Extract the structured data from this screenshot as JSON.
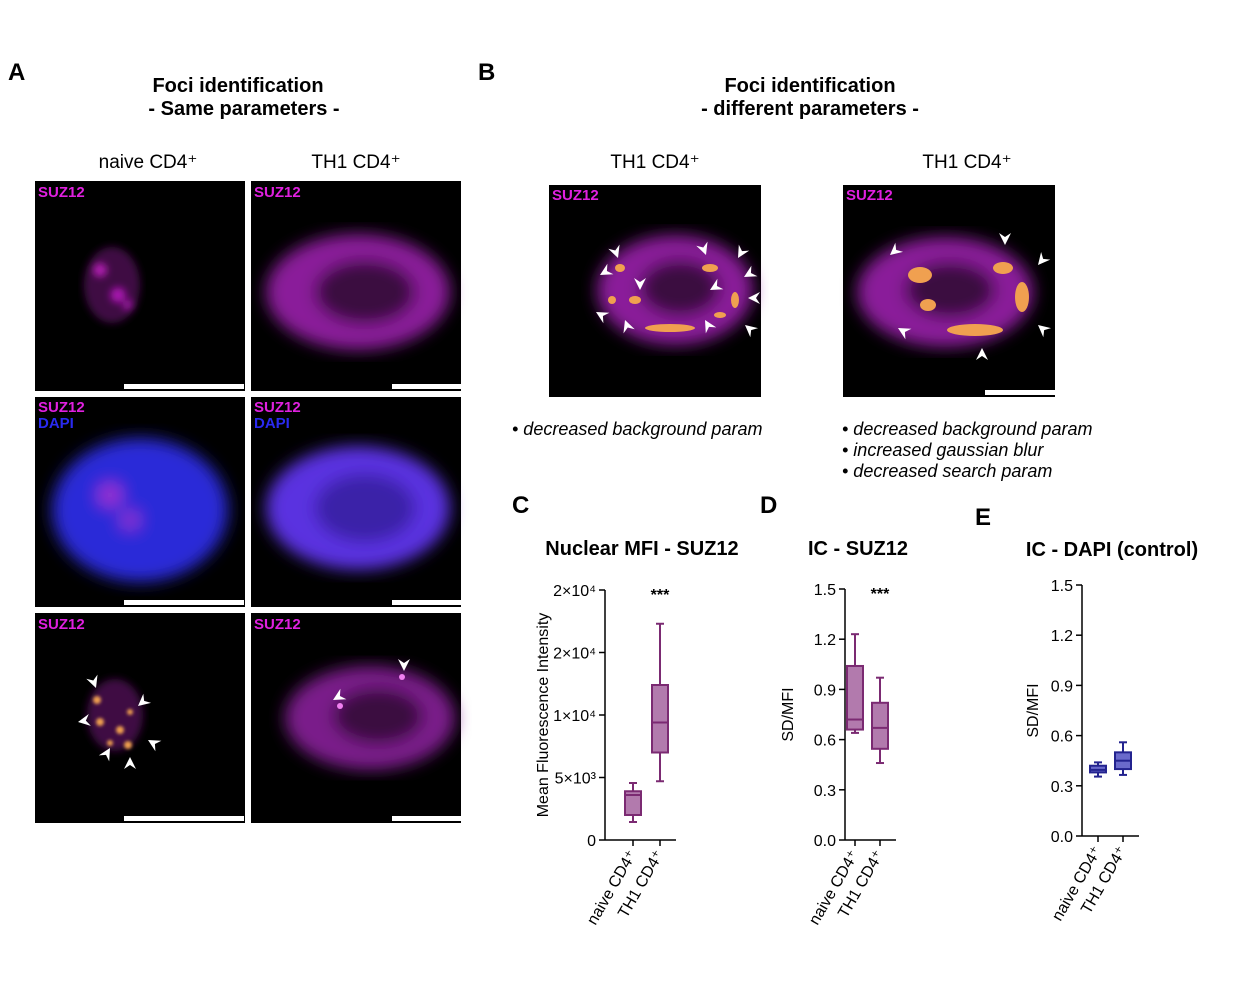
{
  "panel_a": {
    "letter": "A",
    "title_line1": "Foci identification",
    "title_line2": "- Same parameters -",
    "columns": [
      "naive CD4⁺",
      "TH1 CD4⁺"
    ],
    "channel_suz12": "SUZ12",
    "channel_dapi": "DAPI"
  },
  "panel_b": {
    "letter": "B",
    "title_line1": "Foci identification",
    "title_line2": "- different parameters -",
    "columns": [
      "TH1 CD4⁺",
      "TH1 CD4⁺"
    ],
    "channel": "SUZ12",
    "notes_left": [
      "• decreased background param"
    ],
    "notes_right": [
      "• decreased background param",
      "• increased gaussian blur",
      "• decreased search param"
    ]
  },
  "chart_data": [
    {
      "type": "box",
      "letter": "C",
      "title": "Nuclear MFI - SUZ12",
      "ylabel": "Mean Fluorescence Intensity",
      "categories": [
        "naive CD4⁺",
        "TH1 CD4⁺"
      ],
      "annotation": "***",
      "color": "#7b2a72",
      "fill": "#b27aad",
      "ylim": [
        0,
        20000
      ],
      "yticks": [
        {
          "value": 0,
          "label": "0"
        },
        {
          "value": 5000,
          "label": "5×10³"
        },
        {
          "value": 10000,
          "label": "1×10⁴"
        },
        {
          "value": 15000,
          "label": "2×10⁴"
        },
        {
          "value": 20000,
          "label": "2×10⁴"
        }
      ],
      "boxes": [
        {
          "min": 1440,
          "q1": 2000,
          "median": 3600,
          "q3": 3900,
          "max": 4560
        },
        {
          "min": 4700,
          "q1": 7000,
          "median": 9400,
          "q3": 12400,
          "max": 17300
        }
      ]
    },
    {
      "type": "box",
      "letter": "D",
      "title": "IC - SUZ12",
      "ylabel": "SD/MFI",
      "categories": [
        "naive CD4⁺",
        "TH1 CD4⁺"
      ],
      "annotation": "***",
      "color": "#7b2a72",
      "fill": "#b27aad",
      "ylim": [
        0,
        1.5
      ],
      "yticks": [
        {
          "value": 0,
          "label": "0.0"
        },
        0.3,
        0.6,
        0.9,
        1.2,
        1.5
      ],
      "boxes": [
        {
          "min": 0.64,
          "q1": 0.66,
          "median": 0.72,
          "q3": 1.04,
          "max": 1.23
        },
        {
          "min": 0.46,
          "q1": 0.545,
          "median": 0.67,
          "q3": 0.82,
          "max": 0.97
        }
      ]
    },
    {
      "type": "box",
      "letter": "E",
      "title": "IC - DAPI (control)",
      "ylabel": "SD/MFI",
      "categories": [
        "naive CD4⁺",
        "TH1 CD4⁺"
      ],
      "color": "#23238f",
      "fill": "#6a6acb",
      "ylim": [
        0,
        1.5
      ],
      "yticks": [
        {
          "value": 0,
          "label": "0.0"
        },
        0.3,
        0.6,
        0.9,
        1.2,
        1.5
      ],
      "boxes": [
        {
          "min": 0.355,
          "q1": 0.38,
          "median": 0.395,
          "q3": 0.42,
          "max": 0.44
        },
        {
          "min": 0.365,
          "q1": 0.4,
          "median": 0.45,
          "q3": 0.5,
          "max": 0.56
        }
      ]
    }
  ]
}
